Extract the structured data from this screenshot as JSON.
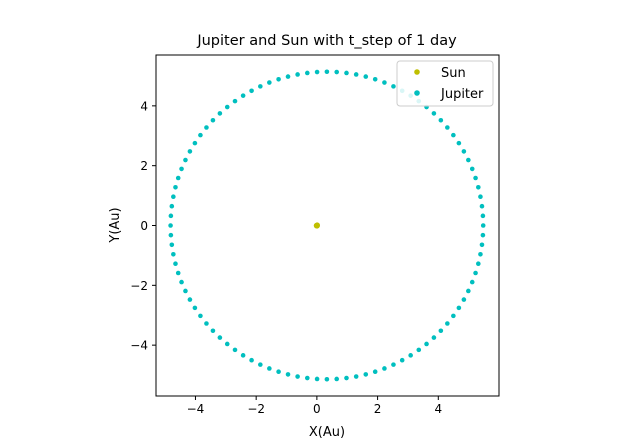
{
  "chart_data": {
    "type": "scatter",
    "title": "Jupiter and Sun with t_step of 1 day",
    "xlabel": "X(Au)",
    "ylabel": "Y(Au)",
    "xlim": [
      -5.3,
      6.0
    ],
    "ylim": [
      -5.7,
      5.7
    ],
    "xticks": [
      -4,
      -2,
      0,
      2,
      4
    ],
    "xtick_labels": [
      "−4",
      "−2",
      "0",
      "2",
      "4"
    ],
    "yticks": [
      -4,
      -2,
      0,
      2,
      4
    ],
    "ytick_labels": [
      "−4",
      "−2",
      "0",
      "2",
      "4"
    ],
    "grid": false,
    "legend_position": "top-right",
    "series": [
      {
        "name": "Sun",
        "color": "#bfbf00",
        "marker": "circle",
        "x": [
          0,
          0.01,
          -0.01,
          0.005
        ],
        "y": [
          0,
          0.01,
          -0.005,
          -0.01
        ]
      },
      {
        "name": "Jupiter",
        "color": "#00bfbf",
        "marker": "circle",
        "orbit": {
          "center": [
            0.33,
            0
          ],
          "semi_major_axis": 5.15,
          "semi_minor_axis": 5.14,
          "points": 100
        }
      }
    ]
  }
}
